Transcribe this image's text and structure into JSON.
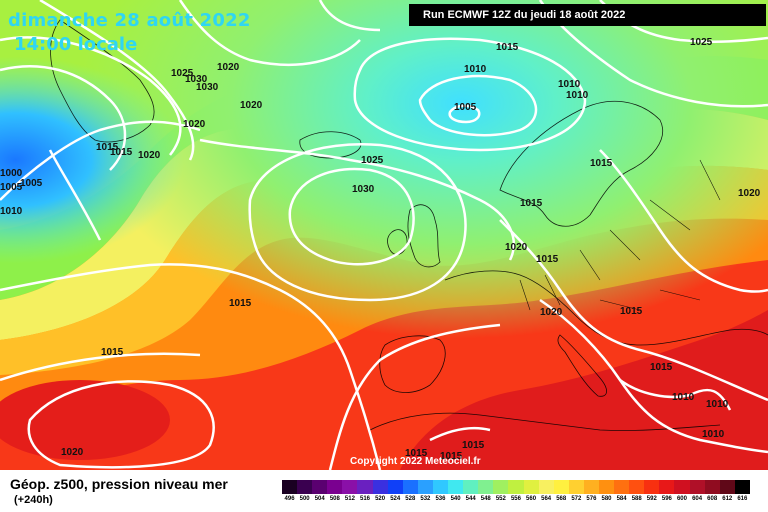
{
  "header": {
    "date_line": "dimanche 28 août 2022",
    "time_line": "14:00 locale",
    "run_info": "Run ECMWF 12Z du jeudi 18 août 2022"
  },
  "footer": {
    "field_title": "Géop. z500, pression niveau mer",
    "lead_time": "(+240h)",
    "copyright": "Copyright 2022 Meteociel.fr"
  },
  "legend": {
    "tick_labels": [
      "496",
      "500",
      "504",
      "508",
      "512",
      "516",
      "520",
      "524",
      "528",
      "532",
      "536",
      "540",
      "544",
      "548",
      "552",
      "556",
      "560",
      "564",
      "568",
      "572",
      "576",
      "580",
      "584",
      "588",
      "592",
      "596",
      "600",
      "604",
      "608",
      "612",
      "616"
    ],
    "colors": [
      "#1a0022",
      "#3a0050",
      "#5a0070",
      "#7a0090",
      "#8a10a8",
      "#6a20c0",
      "#3a30e0",
      "#1040f8",
      "#1a70ff",
      "#2aa0ff",
      "#30c8ff",
      "#40e8f0",
      "#60f0c0",
      "#80f090",
      "#a0f060",
      "#c0f040",
      "#e0f040",
      "#f8f060",
      "#fff040",
      "#ffd030",
      "#ffb020",
      "#ff9010",
      "#ff7010",
      "#ff5010",
      "#f83010",
      "#e81818",
      "#d01020",
      "#b01028",
      "#900c20",
      "#600818",
      "#000000"
    ]
  },
  "isobars": {
    "labels": [
      "1025",
      "1030",
      "1020",
      "1030",
      "1010",
      "1015",
      "1010",
      "1025",
      "1020",
      "1005",
      "1020",
      "1015",
      "1010",
      "1010",
      "1015",
      "1015",
      "1020",
      "1000",
      "1005",
      "1005",
      "1025",
      "1030",
      "1015",
      "1020",
      "1015",
      "1020",
      "1015",
      "1020",
      "1015",
      "1015",
      "1015",
      "1010",
      "1010",
      "1010",
      "1015",
      "1015",
      "1020",
      "1015"
    ]
  },
  "map": {
    "lows": [
      "1005",
      "1000"
    ],
    "highs": [
      "1030",
      "1030",
      "1025"
    ]
  }
}
